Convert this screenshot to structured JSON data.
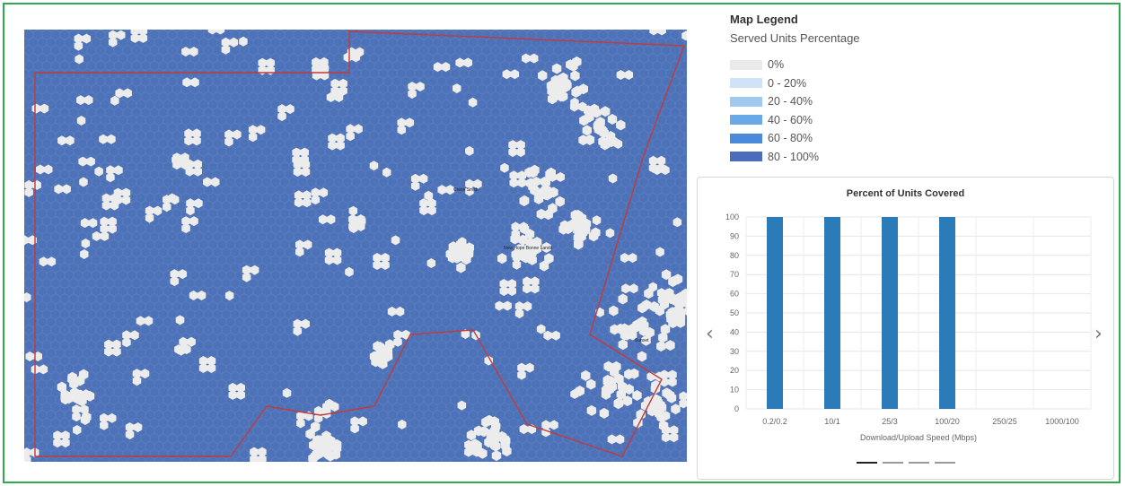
{
  "legend": {
    "title": "Map Legend",
    "subtitle": "Served Units Percentage",
    "items": [
      {
        "label": "0%",
        "color": "#eaeaea"
      },
      {
        "label": "0 - 20%",
        "color": "#cfe2f7"
      },
      {
        "label": "20 - 40%",
        "color": "#9fc9ef"
      },
      {
        "label": "40 - 60%",
        "color": "#6aa9e6"
      },
      {
        "label": "60 - 80%",
        "color": "#4a8ad8"
      },
      {
        "label": "80 - 100%",
        "color": "#4a6dbb"
      }
    ]
  },
  "map": {
    "fill_color": "#4d72b8",
    "gap_color": "#ececec",
    "boundary_color": "#c23b3b",
    "place_labels": [
      "New Hope Bonne Lands",
      "Creek Smith",
      "Sunset"
    ]
  },
  "carousel": {
    "prev_icon": "chevron-left-icon",
    "next_icon": "chevron-right-icon",
    "slide_count": 4,
    "active_slide": 0
  },
  "chart_data": {
    "type": "bar",
    "title": "Percent of Units Covered",
    "categories": [
      "0.2/0.2",
      "10/1",
      "25/3",
      "100/20",
      "250/25",
      "1000/100"
    ],
    "values": [
      100,
      100,
      100,
      100,
      0,
      0
    ],
    "xlabel": "Download/Upload Speed (Mbps)",
    "ylabel": "",
    "ylim": [
      0,
      100
    ],
    "yticks": [
      0,
      10,
      20,
      30,
      40,
      50,
      60,
      70,
      80,
      90,
      100
    ],
    "bar_color": "#2b7bb9",
    "grid": true
  }
}
